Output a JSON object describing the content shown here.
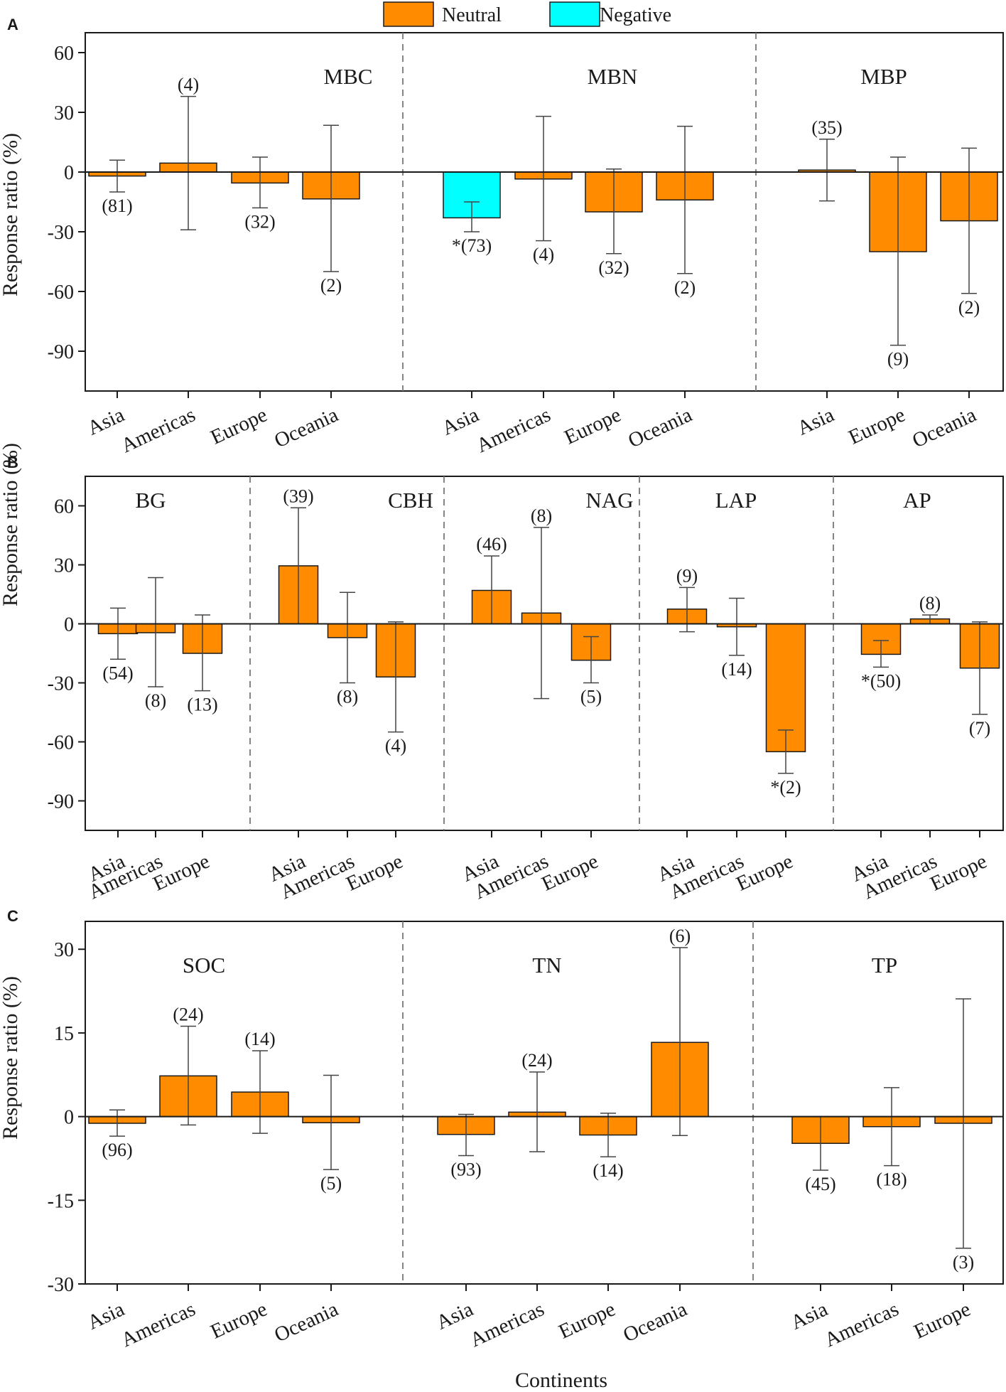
{
  "legend": [
    {
      "label": "Neutral",
      "color": "#ff8c00"
    },
    {
      "label": "Negative",
      "color": "#00ffff"
    }
  ],
  "xlabel": "Continents",
  "chart_data": [
    {
      "type": "bar",
      "panel": "A",
      "ylabel": "Response ratio (%)",
      "ylim": [
        -110,
        70
      ],
      "yticks": [
        "60",
        "30",
        "0",
        "-30",
        "-60",
        "-90"
      ],
      "groups": [
        {
          "title": "MBC",
          "bars": [
            {
              "category": "Asia",
              "value": -2,
              "err_lo": -10,
              "err_hi": 6,
              "label": "(81)",
              "status": "Neutral"
            },
            {
              "category": "Americas",
              "value": 4.5,
              "err_lo": -29,
              "err_hi": 38,
              "label": "(4)",
              "status": "Neutral"
            },
            {
              "category": "Europe",
              "value": -5.5,
              "err_lo": -18,
              "err_hi": 7.5,
              "label": "(32)",
              "status": "Neutral"
            },
            {
              "category": "Oceania",
              "value": -13.5,
              "err_lo": -50,
              "err_hi": 23.5,
              "label": "(2)",
              "status": "Neutral"
            }
          ]
        },
        {
          "title": "MBN",
          "bars": [
            {
              "category": "Asia",
              "value": -23,
              "err_lo": -30,
              "err_hi": -15,
              "label": "*(73)",
              "status": "Negative"
            },
            {
              "category": "Americas",
              "value": -3.5,
              "err_lo": -34.5,
              "err_hi": 28,
              "label": "(4)",
              "status": "Neutral"
            },
            {
              "category": "Europe",
              "value": -20,
              "err_lo": -41,
              "err_hi": 1.5,
              "label": "(32)",
              "status": "Neutral"
            },
            {
              "category": "Oceania",
              "value": -14,
              "err_lo": -51,
              "err_hi": 23,
              "label": "(2)",
              "status": "Neutral"
            }
          ]
        },
        {
          "title": "MBP",
          "bars": [
            {
              "category": "Asia",
              "value": 1,
              "err_lo": -14.5,
              "err_hi": 16.5,
              "label": "(35)",
              "status": "Neutral"
            },
            {
              "category": "Europe",
              "value": -40,
              "err_lo": -87,
              "err_hi": 7.5,
              "label": "(9)",
              "status": "Neutral"
            },
            {
              "category": "Oceania",
              "value": -24.5,
              "err_lo": -61,
              "err_hi": 12,
              "label": "(2)",
              "status": "Neutral"
            }
          ]
        }
      ]
    },
    {
      "type": "bar",
      "panel": "B",
      "ylabel": "Response ratio (%)",
      "ylim": [
        -105,
        75
      ],
      "yticks": [
        "60",
        "30",
        "0",
        "-30",
        "-60",
        "-90"
      ],
      "groups": [
        {
          "title": "BG",
          "bars": [
            {
              "category": "Asia",
              "value": -5,
              "err_lo": -18,
              "err_hi": 8,
              "label": "(54)",
              "status": "Neutral"
            },
            {
              "category": "Americas",
              "value": -4.5,
              "err_lo": -32,
              "err_hi": 23.5,
              "label": "(8)",
              "status": "Neutral"
            },
            {
              "category": "Europe",
              "value": -15,
              "err_lo": -34,
              "err_hi": 4.5,
              "label": "(13)",
              "status": "Neutral"
            }
          ]
        },
        {
          "title": "CBH",
          "bars": [
            {
              "category": "Asia",
              "value": 29.5,
              "err_lo": 0,
              "err_hi": 59,
              "label": "(39)",
              "status": "Neutral"
            },
            {
              "category": "Americas",
              "value": -7,
              "err_lo": -30,
              "err_hi": 16,
              "label": "(8)",
              "status": "Neutral"
            },
            {
              "category": "Europe",
              "value": -27,
              "err_lo": -55,
              "err_hi": 1,
              "label": "(4)",
              "status": "Neutral"
            }
          ]
        },
        {
          "title": "NAG",
          "bars": [
            {
              "category": "Asia",
              "value": 17,
              "err_lo": 0,
              "err_hi": 34.5,
              "label": "(46)",
              "status": "Neutral"
            },
            {
              "category": "Americas",
              "value": 5.5,
              "err_lo": -38,
              "err_hi": 49,
              "label": "(8)",
              "status": "Neutral"
            },
            {
              "category": "Europe",
              "value": -18.5,
              "err_lo": -30,
              "err_hi": -6.5,
              "label": "(5)",
              "status": "Neutral"
            }
          ]
        },
        {
          "title": "LAP",
          "bars": [
            {
              "category": "Asia",
              "value": 7.5,
              "err_lo": -4,
              "err_hi": 18.5,
              "label": "(9)",
              "status": "Neutral"
            },
            {
              "category": "Americas",
              "value": -1.5,
              "err_lo": -16,
              "err_hi": 13,
              "label": "(14)",
              "status": "Neutral"
            },
            {
              "category": "Europe",
              "value": -65,
              "err_lo": -76,
              "err_hi": -54,
              "label": "*(2)",
              "status": "Neutral"
            }
          ]
        },
        {
          "title": "AP",
          "bars": [
            {
              "category": "Asia",
              "value": -15.5,
              "err_lo": -22,
              "err_hi": -8.5,
              "label": "*(50)",
              "status": "Neutral"
            },
            {
              "category": "Americas",
              "value": 2.5,
              "err_lo": 0,
              "err_hi": 4.5,
              "label": "(8)",
              "status": "Neutral"
            },
            {
              "category": "Europe",
              "value": -22.5,
              "err_lo": -46,
              "err_hi": 1,
              "label": "(7)",
              "status": "Neutral"
            }
          ]
        }
      ]
    },
    {
      "type": "bar",
      "panel": "C",
      "ylabel": "Response ratio (%)",
      "ylim": [
        -30,
        35
      ],
      "yticks": [
        "30",
        "15",
        "0",
        "-15",
        "-30"
      ],
      "groups": [
        {
          "title": "SOC",
          "bars": [
            {
              "category": "Asia",
              "value": -1.2,
              "err_lo": -3.5,
              "err_hi": 1.2,
              "label": "(96)",
              "status": "Neutral"
            },
            {
              "category": "Americas",
              "value": 7.3,
              "err_lo": -1.5,
              "err_hi": 16.2,
              "label": "(24)",
              "status": "Neutral"
            },
            {
              "category": "Europe",
              "value": 4.4,
              "err_lo": -3,
              "err_hi": 11.8,
              "label": "(14)",
              "status": "Neutral"
            },
            {
              "category": "Oceania",
              "value": -1.1,
              "err_lo": -9.5,
              "err_hi": 7.4,
              "label": "(5)",
              "status": "Neutral"
            }
          ]
        },
        {
          "title": "TN",
          "bars": [
            {
              "category": "Asia",
              "value": -3.2,
              "err_lo": -7,
              "err_hi": 0.4,
              "label": "(93)",
              "status": "Neutral"
            },
            {
              "category": "Americas",
              "value": 0.8,
              "err_lo": -6.3,
              "err_hi": 8,
              "label": "(24)",
              "status": "Neutral"
            },
            {
              "category": "Europe",
              "value": -3.3,
              "err_lo": -7.2,
              "err_hi": 0.6,
              "label": "(14)",
              "status": "Neutral"
            },
            {
              "category": "Oceania",
              "value": 13.3,
              "err_lo": -3.4,
              "err_hi": 30.3,
              "label": "(6)",
              "status": "Neutral"
            }
          ]
        },
        {
          "title": "TP",
          "bars": [
            {
              "category": "Asia",
              "value": -4.8,
              "err_lo": -9.6,
              "err_hi": 0,
              "label": "(45)",
              "status": "Neutral"
            },
            {
              "category": "Americas",
              "value": -1.8,
              "err_lo": -8.8,
              "err_hi": 5.2,
              "label": "(18)",
              "status": "Neutral"
            },
            {
              "category": "Europe",
              "value": -1.2,
              "err_lo": -23.6,
              "err_hi": 21.1,
              "label": "(3)",
              "status": "Neutral"
            }
          ]
        }
      ]
    }
  ]
}
